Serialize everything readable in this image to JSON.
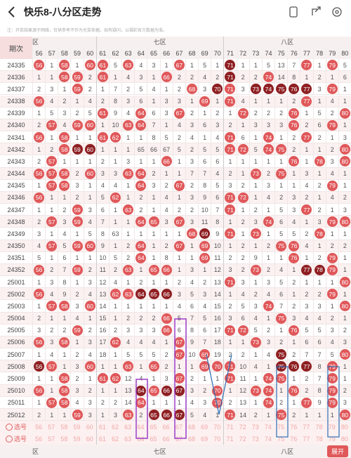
{
  "header": {
    "title": "快乐8-八分区走势"
  },
  "notice": "注：开奖结果源于网络，仅供参考不作为兑奖依据。如有疑问，以福彩官方数据为准。",
  "table": {
    "period_label": "期次",
    "zones": [
      "区",
      "七区",
      "八区"
    ],
    "columns": [
      "56",
      "57",
      "58",
      "59",
      "60",
      "61",
      "62",
      "63",
      "64",
      "65",
      "66",
      "67",
      "68",
      "69",
      "70",
      "71",
      "72",
      "73",
      "74",
      "75",
      "76",
      "77",
      "78",
      "79",
      "80"
    ],
    "rows": [
      {
        "period": "24335",
        "cells": [
          "56",
          "1",
          "58",
          "1",
          "60",
          "61",
          "5",
          "63",
          "4",
          "3",
          "1",
          "67",
          "1",
          "5",
          "1",
          {
            "text": "71",
            "dark": true
          },
          "1",
          "1",
          "5",
          "13",
          "7",
          "77",
          "1",
          "79",
          "5"
        ]
      },
      {
        "period": "24336",
        "cells": [
          "1",
          "1",
          "58",
          "59",
          "2",
          "61",
          "1",
          "4",
          "3",
          "1",
          "66",
          "2",
          "2",
          "4",
          "2",
          {
            "text": "71",
            "dark": true
          },
          "2",
          "2",
          "74",
          "14",
          "8",
          "1",
          "2",
          "1",
          "6"
        ]
      },
      {
        "period": "24337",
        "cells": [
          "2",
          "3",
          "1",
          "59",
          "2",
          "1",
          "7",
          "2",
          "5",
          "4",
          "1",
          "2",
          "68",
          "3",
          {
            "text": "70",
            "dark": true
          },
          "71",
          "3",
          {
            "text": "73",
            "dark": true
          },
          {
            "text": "74",
            "dark": true
          },
          {
            "text": "75",
            "dark": true
          },
          {
            "text": "76",
            "dark": true
          },
          {
            "text": "77",
            "dark": true
          },
          "3",
          "79",
          "1"
        ]
      },
      {
        "period": "24338",
        "cells": [
          "56",
          "4",
          "2",
          "1",
          "4",
          "2",
          "8",
          "3",
          "6",
          "1",
          "3",
          "3",
          "1",
          "69",
          "1",
          "71",
          "4",
          "1",
          "1",
          "1",
          "2",
          "77",
          "1",
          "4",
          "1"
        ]
      },
      {
        "period": "24339",
        "cells": [
          "1",
          "5",
          "3",
          "2",
          "5",
          "61",
          "9",
          "4",
          "64",
          "6",
          "3",
          "67",
          "2",
          "1",
          "2",
          "1",
          "72",
          "2",
          "2",
          "2",
          "76",
          "1",
          "5",
          "2",
          "80"
        ]
      },
      {
        "period": "24340",
        "cells": [
          "2",
          "57",
          "4",
          "59",
          "60",
          "1",
          "10",
          "63",
          "64",
          "7",
          "1",
          "4",
          "3",
          "6",
          "3",
          "2",
          "1",
          "3",
          "3",
          "3",
          "76",
          "2",
          "6",
          "79",
          "1"
        ]
      },
      {
        "period": "24341",
        "cells": [
          "56",
          "1",
          "58",
          "1",
          "1",
          "61",
          "62",
          "1",
          "1",
          "8",
          "5",
          "2",
          "4",
          "1",
          "4",
          "71",
          "6",
          "1",
          "74",
          "1",
          "2",
          "77",
          "2",
          "1",
          "3"
        ]
      },
      {
        "period": "24342",
        "cells": [
          "1",
          "2",
          "58",
          {
            "text": "59",
            "dark": true
          },
          {
            "text": "60",
            "dark": true
          },
          "1",
          "1",
          "1",
          "65",
          "66",
          "67",
          "5",
          "2",
          "5",
          "5",
          "71",
          "72",
          "5",
          "74",
          "75",
          "2",
          "1",
          "1",
          "2",
          "80"
        ]
      },
      {
        "period": "24343",
        "cells": [
          "2",
          "57",
          "1",
          "1",
          "1",
          "2",
          "1",
          "3",
          "1",
          "1",
          "66",
          "1",
          "3",
          "6",
          "6",
          "1",
          "1",
          "1",
          "1",
          "1",
          "76",
          "1",
          "78",
          "3",
          "80"
        ]
      },
      {
        "period": "24344",
        "cells": [
          "56",
          "57",
          "58",
          "2",
          "60",
          "3",
          "3",
          "63",
          "64",
          "2",
          "1",
          "1",
          "7",
          "7",
          "4",
          "2",
          "1",
          "73",
          "2",
          "75",
          "1",
          "3",
          "1",
          "4",
          "1"
        ]
      },
      {
        "period": "24345",
        "cells": [
          "1",
          "57",
          "58",
          "3",
          "1",
          "4",
          "4",
          "1",
          "64",
          "3",
          "2",
          "67",
          "2",
          "8",
          "5",
          "3",
          "2",
          "1",
          "3",
          "1",
          "1",
          "4",
          "2",
          "79",
          "1"
        ]
      },
      {
        "period": "24346",
        "cells": [
          "56",
          "1",
          "1",
          "2",
          "1",
          "5",
          "62",
          "1",
          "2",
          "1",
          "4",
          "1",
          "3",
          "9",
          "6",
          "71",
          "72",
          "1",
          "4",
          "2",
          "3",
          "2",
          "1",
          "4",
          "2"
        ]
      },
      {
        "period": "24347",
        "cells": [
          "1",
          "1",
          "2",
          "59",
          "3",
          "6",
          "1",
          "63",
          "2",
          "1",
          "4",
          "2",
          "2",
          "10",
          "7",
          "71",
          "1",
          "2",
          "1",
          "5",
          "3",
          "77",
          "2",
          "1",
          "3"
        ]
      },
      {
        "period": "24348",
        "cells": [
          "2",
          "57",
          "3",
          "59",
          "4",
          "7",
          "1",
          "1",
          "64",
          "65",
          "3",
          "67",
          "3",
          "11",
          "8",
          "1",
          "2",
          "3",
          "74",
          "6",
          "4",
          "1",
          "3",
          "79",
          "80"
        ]
      },
      {
        "period": "24349",
        "cells": [
          "3",
          "1",
          "4",
          "1",
          "5",
          "8",
          "63",
          "1",
          "1",
          "1",
          "1",
          "1",
          "68",
          {
            "text": "69",
            "dark": true
          },
          "9",
          "71",
          "1",
          "73",
          "1",
          "5",
          "5",
          "2",
          "78",
          "1",
          "1"
        ]
      },
      {
        "period": "24350",
        "cells": [
          "4",
          "57",
          "5",
          "59",
          "60",
          "9",
          "1",
          "2",
          "64",
          "1",
          "2",
          "67",
          "1",
          "69",
          "10",
          "1",
          "2",
          "1",
          "2",
          "75",
          "76",
          "4",
          "1",
          "2",
          "2"
        ]
      },
      {
        "period": "24351",
        "cells": [
          "5",
          "1",
          "6",
          "1",
          "1",
          "10",
          "5",
          "2",
          "64",
          "1",
          "8",
          "1",
          "1",
          "69",
          "11",
          "2",
          "2",
          "9",
          "1",
          "1",
          "76",
          "1",
          "2",
          "79",
          "1"
        ]
      },
      {
        "period": "24352",
        "cells": [
          "56",
          "2",
          "7",
          "59",
          "2",
          "11",
          "2",
          "63",
          "1",
          "65",
          "66",
          "1",
          "3",
          "1",
          "12",
          "3",
          "2",
          "73",
          "2",
          "4",
          "1",
          {
            "text": "77",
            "dark": true
          },
          {
            "text": "78",
            "dark": true
          },
          "79",
          "1"
        ]
      },
      {
        "period": "25001",
        "cells": [
          "1",
          "3",
          "8",
          "1",
          "3",
          "12",
          "4",
          "1",
          "2",
          "1",
          "1",
          "2",
          "4",
          "2",
          "13",
          "71",
          "3",
          "1",
          "3",
          "5",
          "2",
          "1",
          "1",
          "1",
          "80"
        ]
      },
      {
        "period": "25002",
        "cells": [
          "56",
          "4",
          "9",
          "2",
          "4",
          "13",
          "62",
          "63",
          {
            "text": "64",
            "dark": true
          },
          {
            "text": "65",
            "dark": true
          },
          {
            "text": "66",
            "dark": true
          },
          "3",
          "5",
          "3",
          "14",
          "1",
          "4",
          "2",
          "4",
          "6",
          "1",
          "2",
          "2",
          "79",
          "1"
        ]
      },
      {
        "period": "25003",
        "cells": [
          "1",
          "57",
          "58",
          "3",
          "60",
          "14",
          "1",
          "1",
          "1",
          "1",
          "1",
          "4",
          "6",
          "4",
          "15",
          "2",
          "5",
          "3",
          "74",
          "7",
          "2",
          "3",
          "3",
          "1",
          "80"
        ]
      },
      {
        "period": "25004",
        "cells": [
          "2",
          "1",
          "1",
          "4",
          "1",
          "15",
          "1",
          "2",
          "2",
          "2",
          "66",
          "5",
          "7",
          "5",
          "16",
          "3",
          "6",
          "4",
          "1",
          "75",
          "3",
          "4",
          "4",
          "2",
          "1"
        ]
      },
      {
        "period": "25005",
        "cells": [
          "3",
          "2",
          "2",
          "59",
          "2",
          "16",
          "2",
          "3",
          "3",
          "3",
          "66",
          "6",
          "8",
          "6",
          "17",
          "71",
          "72",
          "5",
          "2",
          "1",
          "76",
          "5",
          "5",
          "3",
          "2"
        ]
      },
      {
        "period": "25006",
        "cells": [
          "56",
          "3",
          "58",
          "1",
          "3",
          "17",
          "62",
          "4",
          "4",
          "4",
          "1",
          "67",
          "9",
          "7",
          "18",
          "1",
          "1",
          "73",
          "3",
          "2",
          "1",
          "6",
          "6",
          "4",
          "3"
        ]
      },
      {
        "period": "25007",
        "cells": [
          "1",
          "4",
          "1",
          "2",
          "4",
          "18",
          "1",
          "5",
          "5",
          "5",
          "2",
          "67",
          "10",
          "69",
          "19",
          "2",
          "2",
          "1",
          "4",
          {
            "text": "75",
            "dark": true
          },
          "2",
          "7",
          "7",
          "5",
          "80"
        ]
      },
      {
        "period": "25008",
        "cells": [
          {
            "text": "56",
            "dark": true
          },
          "57",
          "1",
          "3",
          "60",
          "1",
          "1",
          "63",
          "1",
          "65",
          "2",
          "1",
          "1",
          "69",
          "70",
          "71",
          "10",
          "4",
          "1",
          {
            "text": "75",
            "dark": true
          },
          {
            "text": "76",
            "dark": true
          },
          {
            "text": "77",
            "dark": true
          },
          "8",
          "79",
          "1"
        ]
      },
      {
        "period": "25009",
        "cells": [
          "1",
          "1",
          "58",
          "2",
          "1",
          "61",
          "62",
          "12",
          "4",
          "1",
          "3",
          "67",
          "2",
          "1",
          "1",
          "71",
          "11",
          "1",
          "74",
          "75",
          "1",
          "2",
          "7",
          "79",
          "1"
        ]
      },
      {
        "period": "25010",
        "cells": [
          "56",
          "1",
          "58",
          "3",
          "2",
          "1",
          "1",
          "13",
          {
            "text": "64",
            "dark": true
          },
          "65",
          {
            "text": "66",
            "dark": true
          },
          {
            "text": "67",
            "dark": true
          },
          "3",
          "2",
          "70",
          "1",
          "12",
          "73",
          "74",
          "1",
          "76",
          "2",
          "8",
          "79",
          "2"
        ]
      },
      {
        "period": "25011",
        "cells": [
          "1",
          "57",
          "58",
          "4",
          "3",
          "2",
          "2",
          "14",
          "64",
          "1",
          "1",
          "1",
          "4",
          "3",
          "70",
          "2",
          "13",
          "1",
          "74",
          "2",
          "1",
          "77",
          "9",
          "79",
          "3"
        ]
      },
      {
        "period": "25012",
        "cells": [
          "2",
          "1",
          "1",
          "59",
          "3",
          "1",
          "3",
          "63",
          "2",
          {
            "text": "65",
            "dark": true
          },
          {
            "text": "66",
            "dark": true
          },
          {
            "text": "67",
            "dark": true
          },
          "5",
          "4",
          "1",
          "71",
          "14",
          "2",
          "1",
          "75",
          "2",
          "1",
          "1",
          "1",
          "80"
        ]
      }
    ],
    "pick_rows": [
      {
        "label": "选号",
        "cells": [
          "56",
          "57",
          "58",
          "59",
          "60",
          "61",
          "62",
          "63",
          "64",
          "65",
          "66",
          "67",
          "68",
          "69",
          "70",
          "71",
          "72",
          "73",
          "74",
          "75",
          "76",
          "77",
          "78",
          "79",
          "80"
        ]
      },
      {
        "label": "选号",
        "cells": [
          "56",
          "57",
          "58",
          "59",
          "60",
          "61",
          "62",
          "63",
          "64",
          "65",
          "66",
          "67",
          "68",
          "69",
          "70",
          "71",
          "72",
          "73",
          "74",
          "75",
          "76",
          "77",
          "78",
          "79",
          "80"
        ]
      }
    ]
  },
  "footer": {
    "zones": [
      "区",
      "七区",
      "八区"
    ],
    "expand": "展开"
  }
}
